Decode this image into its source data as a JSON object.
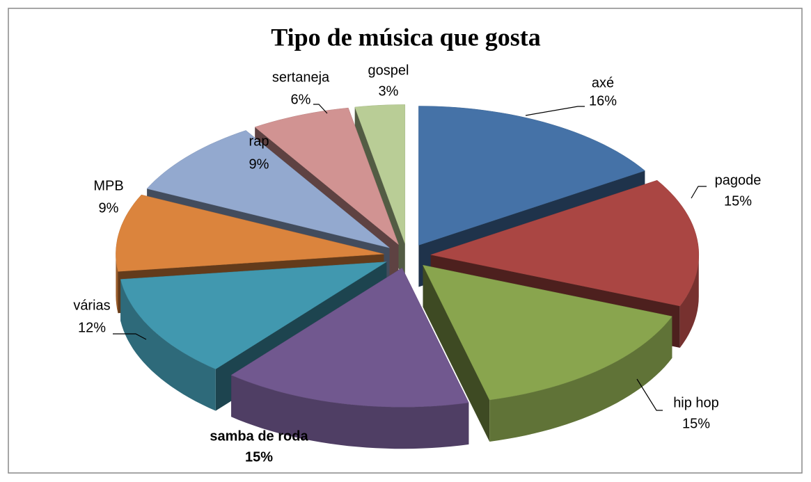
{
  "chart_data": {
    "type": "pie3d",
    "title": "Tipo de música que gosta",
    "categories": [
      "axé",
      "pagode",
      "hip hop",
      "samba de roda",
      "várias",
      "MPB",
      "rap",
      "sertaneja",
      "gospel"
    ],
    "values": [
      16,
      15,
      15,
      15,
      12,
      9,
      9,
      6,
      3
    ],
    "value_labels": [
      "16%",
      "15%",
      "15%",
      "15%",
      "12%",
      "9%",
      "9%",
      "6%",
      "3%"
    ],
    "colors": [
      "#4572a7",
      "#aa4643",
      "#89a54e",
      "#71588f",
      "#4198af",
      "#db843d",
      "#93a9cf",
      "#d19392",
      "#b9cd96"
    ],
    "exploded": true
  }
}
